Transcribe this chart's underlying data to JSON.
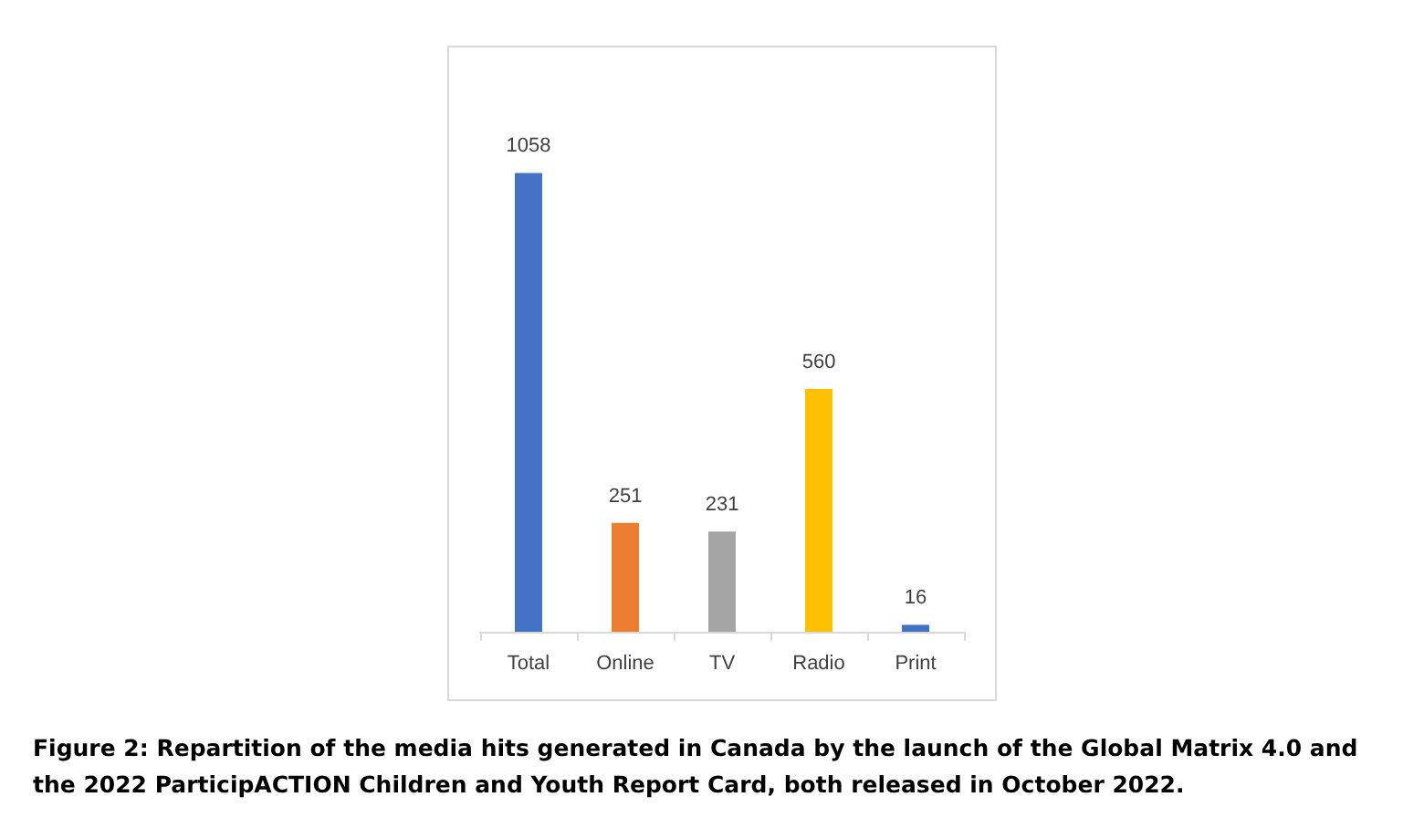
{
  "chart_data": {
    "type": "bar",
    "categories": [
      "Total",
      "Online",
      "TV",
      "Radio",
      "Print"
    ],
    "values": [
      1058,
      251,
      231,
      560,
      16
    ],
    "colors": [
      "#4472c4",
      "#ed7d31",
      "#a5a5a5",
      "#ffc000",
      "#4472c4"
    ],
    "data_labels": true,
    "annotations": [
      "Figure 2: Repartition of the media hits generated in Canada by the launch of the Global Matrix 4.0 and the 2022 ParticipACTION Children and Youth Report Card, both released in October 2022."
    ]
  }
}
